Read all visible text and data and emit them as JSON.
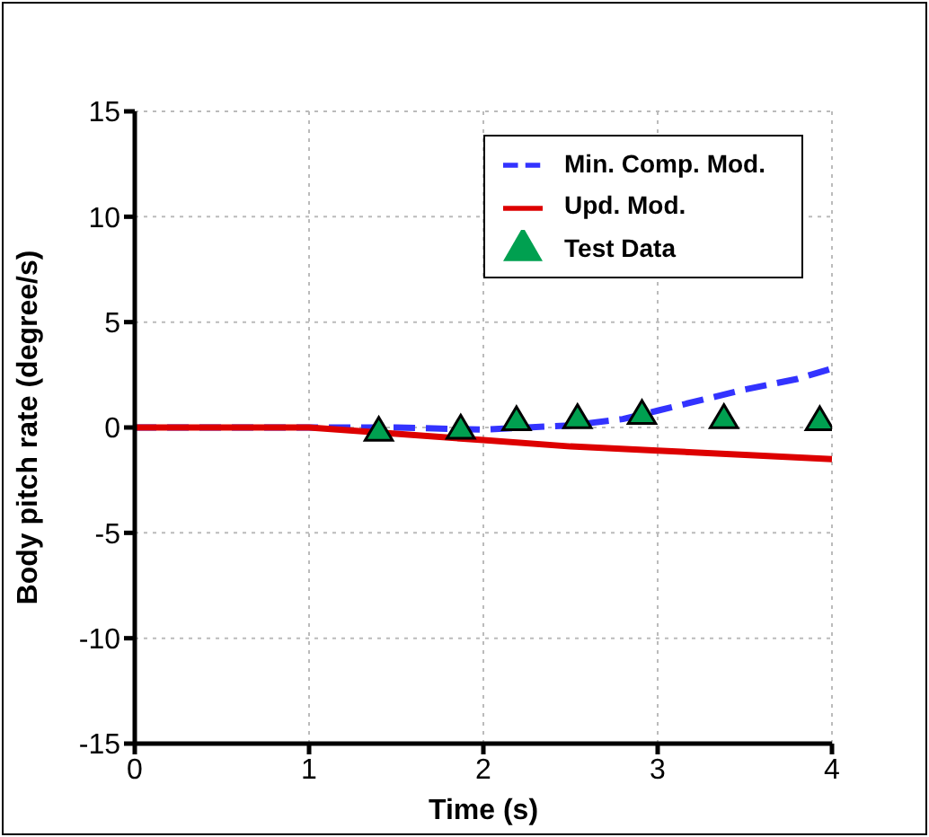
{
  "chart_data": {
    "type": "line",
    "xlabel": "Time (s)",
    "ylabel": "Body pitch rate (degree/s)",
    "xlim": [
      0,
      4
    ],
    "xticks": [
      0,
      1,
      2,
      3,
      4
    ],
    "ylim": [
      -15,
      15
    ],
    "yticks": [
      -15,
      -10,
      -5,
      0,
      5,
      10,
      15
    ],
    "grid": true,
    "legend": "top right",
    "series": [
      {
        "name": "Min. Comp. Mod.",
        "line_style": "dashed",
        "color": "#3333ff",
        "x": [
          0,
          1,
          1.5,
          2,
          2.5,
          2.8,
          3,
          3.3,
          3.5,
          3.8,
          4
        ],
        "values": [
          0,
          0,
          0,
          -0.1,
          0.1,
          0.4,
          0.8,
          1.4,
          1.8,
          2.3,
          2.8
        ]
      },
      {
        "name": "Upd. Mod.",
        "line_style": "solid",
        "color": "#dd0000",
        "x": [
          0,
          1,
          1.5,
          2,
          2.5,
          3,
          3.5,
          4
        ],
        "values": [
          0,
          0,
          -0.3,
          -0.6,
          -0.9,
          -1.1,
          -1.3,
          -1.5
        ]
      },
      {
        "name": "Test Data",
        "type": "scatter",
        "marker": "triangle",
        "color": "#00a050",
        "x": [
          1.4,
          1.87,
          2.19,
          2.54,
          2.91,
          3.38,
          3.93
        ],
        "values": [
          -0.2,
          -0.1,
          0.3,
          0.4,
          0.6,
          0.4,
          0.3
        ]
      }
    ]
  }
}
